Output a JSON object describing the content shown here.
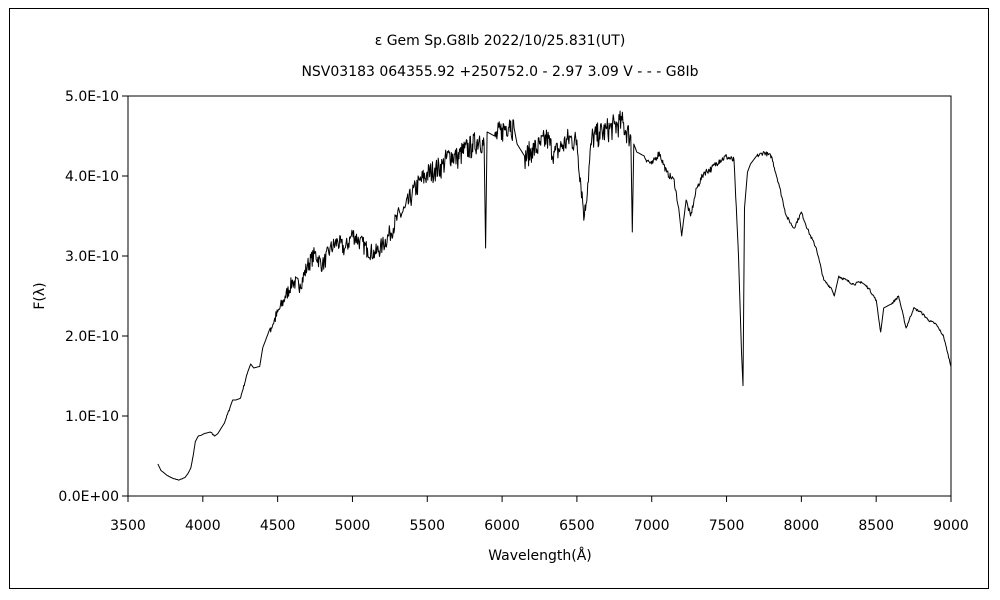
{
  "chart_data": {
    "type": "line",
    "title": "ε Gem   Sp.G8Ib   2022/10/25.831(UT)",
    "subtitle": "NSV03183 064355.92 +250752.0 - 2.97 3.09 V - - - G8Ib",
    "xlabel": "Wavelength(Å)",
    "ylabel": "F(λ)",
    "xlim": [
      3500,
      9000
    ],
    "ylim": [
      0,
      5e-10
    ],
    "x_ticks": [
      3500,
      4000,
      4500,
      5000,
      5500,
      6000,
      6500,
      7000,
      7500,
      8000,
      8500,
      9000
    ],
    "x_tick_labels": [
      "3500",
      "4000",
      "4500",
      "5000",
      "5500",
      "6000",
      "6500",
      "7000",
      "7500",
      "8000",
      "8500",
      "9000"
    ],
    "y_ticks": [
      0,
      1e-10,
      2e-10,
      3e-10,
      4e-10,
      5e-10
    ],
    "y_tick_labels": [
      "0.0E+00",
      "1.0E-10",
      "2.0E-10",
      "3.0E-10",
      "4.0E-10",
      "5.0E-10"
    ],
    "grid": false,
    "series": [
      {
        "color": "#000000",
        "x": [
          3700,
          3720,
          3760,
          3800,
          3840,
          3880,
          3900,
          3920,
          3935,
          3950,
          3970,
          3990,
          4010,
          4050,
          4080,
          4100,
          4140,
          4180,
          4200,
          4220,
          4250,
          4300,
          4320,
          4340,
          4380,
          4400,
          4450,
          4500,
          4550,
          4600,
          4650,
          4700,
          4750,
          4800,
          4850,
          4900,
          4950,
          5000,
          5050,
          5100,
          5150,
          5200,
          5250,
          5300,
          5350,
          5400,
          5450,
          5500,
          5550,
          5600,
          5650,
          5700,
          5750,
          5800,
          5850,
          5880,
          5890,
          5900,
          5950,
          6000,
          6050,
          6080,
          6100,
          6150,
          6200,
          6250,
          6300,
          6350,
          6400,
          6450,
          6500,
          6550,
          6600,
          6650,
          6700,
          6750,
          6800,
          6860,
          6870,
          6880,
          6900,
          6950,
          7000,
          7050,
          7100,
          7150,
          7180,
          7200,
          7230,
          7260,
          7300,
          7350,
          7400,
          7450,
          7500,
          7550,
          7580,
          7600,
          7610,
          7620,
          7640,
          7660,
          7700,
          7750,
          7800,
          7850,
          7900,
          7950,
          8000,
          8050,
          8100,
          8150,
          8200,
          8220,
          8250,
          8300,
          8350,
          8400,
          8450,
          8500,
          8530,
          8550,
          8600,
          8650,
          8700,
          8750,
          8800,
          8850,
          8900,
          8950,
          9000
        ],
        "y": [
          4e-11,
          3.2e-11,
          2.6e-11,
          2.2e-11,
          2e-11,
          2.3e-11,
          2.8e-11,
          3.5e-11,
          5e-11,
          6.8e-11,
          7.5e-11,
          7.6e-11,
          7.8e-11,
          8e-11,
          7.5e-11,
          7.8e-11,
          9e-11,
          1.1e-10,
          1.2e-10,
          1.2e-10,
          1.22e-10,
          1.55e-10,
          1.65e-10,
          1.6e-10,
          1.62e-10,
          1.85e-10,
          2.1e-10,
          2.3e-10,
          2.5e-10,
          2.7e-10,
          2.65e-10,
          2.9e-10,
          3.05e-10,
          2.9e-10,
          3.1e-10,
          3.2e-10,
          3.1e-10,
          3.3e-10,
          3.2e-10,
          3.1e-10,
          3.05e-10,
          3.15e-10,
          3.3e-10,
          3.5e-10,
          3.6e-10,
          3.8e-10,
          3.95e-10,
          4.05e-10,
          4.1e-10,
          4.15e-10,
          4.3e-10,
          4.25e-10,
          4.35e-10,
          4.4e-10,
          4.5e-10,
          4.4e-10,
          3.1e-10,
          4.55e-10,
          4.5e-10,
          4.6e-10,
          4.7e-10,
          4.6e-10,
          4.4e-10,
          4.25e-10,
          4.35e-10,
          4.4e-10,
          4.5e-10,
          4.3e-10,
          4.4e-10,
          4.5e-10,
          4.45e-10,
          3.5e-10,
          4.5e-10,
          4.55e-10,
          4.6e-10,
          4.65e-10,
          4.7e-10,
          4.5e-10,
          3.3e-10,
          4.4e-10,
          4.3e-10,
          4.25e-10,
          4.15e-10,
          4.3e-10,
          4.05e-10,
          3.95e-10,
          3.6e-10,
          3.25e-10,
          3.7e-10,
          3.5e-10,
          3.85e-10,
          4.05e-10,
          4.1e-10,
          4.2e-10,
          4.25e-10,
          4.2e-10,
          3e-10,
          1.8e-10,
          1.38e-10,
          3.6e-10,
          4.05e-10,
          4.15e-10,
          4.25e-10,
          4.3e-10,
          4.25e-10,
          3.9e-10,
          3.5e-10,
          3.35e-10,
          3.55e-10,
          3.3e-10,
          3.1e-10,
          2.7e-10,
          2.6e-10,
          2.5e-10,
          2.75e-10,
          2.7e-10,
          2.65e-10,
          2.68e-10,
          2.6e-10,
          2.45e-10,
          2.05e-10,
          2.35e-10,
          2.4e-10,
          2.5e-10,
          2.1e-10,
          2.35e-10,
          2.3e-10,
          2.2e-10,
          2.15e-10,
          2e-10,
          1.62e-10
        ]
      }
    ]
  }
}
